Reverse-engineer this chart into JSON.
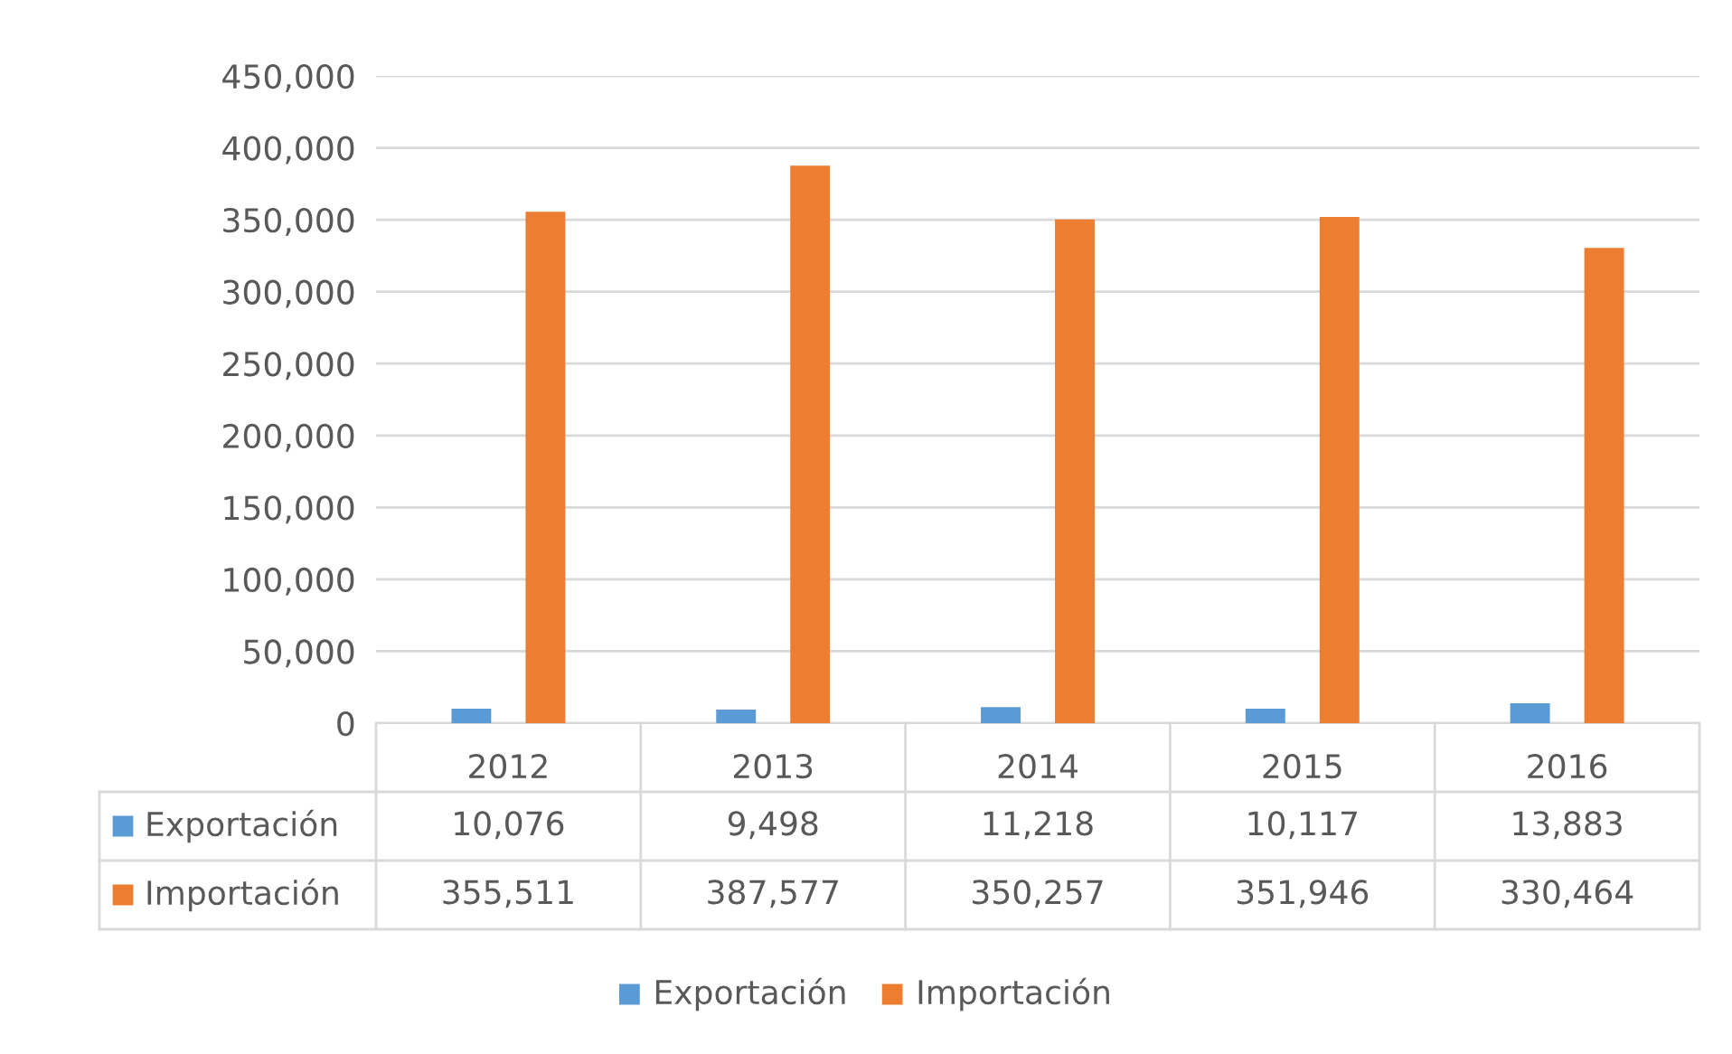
{
  "chart_data": {
    "type": "bar",
    "categories": [
      "2012",
      "2013",
      "2014",
      "2015",
      "2016"
    ],
    "series": [
      {
        "name": "Exportación",
        "color": "#5b9bd5",
        "values": [
          10076,
          9498,
          11218,
          10117,
          13883
        ],
        "value_labels": [
          "10,076",
          "9,498",
          "11,218",
          "10,117",
          "13,883"
        ]
      },
      {
        "name": "Importación",
        "color": "#ed7d31",
        "values": [
          355511,
          387577,
          350257,
          351946,
          330464
        ],
        "value_labels": [
          "355,511",
          "387,577",
          "350,257",
          "351,946",
          "330,464"
        ]
      }
    ],
    "ylim": [
      0,
      450000
    ],
    "yticks": [
      {
        "value": 0,
        "label": "0"
      },
      {
        "value": 50000,
        "label": "50,000"
      },
      {
        "value": 100000,
        "label": "100,000"
      },
      {
        "value": 150000,
        "label": "150,000"
      },
      {
        "value": 200000,
        "label": "200,000"
      },
      {
        "value": 250000,
        "label": "250,000"
      },
      {
        "value": 300000,
        "label": "300,000"
      },
      {
        "value": 350000,
        "label": "350,000"
      },
      {
        "value": 400000,
        "label": "400,000"
      },
      {
        "value": 450000,
        "label": "450,000"
      }
    ],
    "grid": "y",
    "legend": "bottom"
  }
}
